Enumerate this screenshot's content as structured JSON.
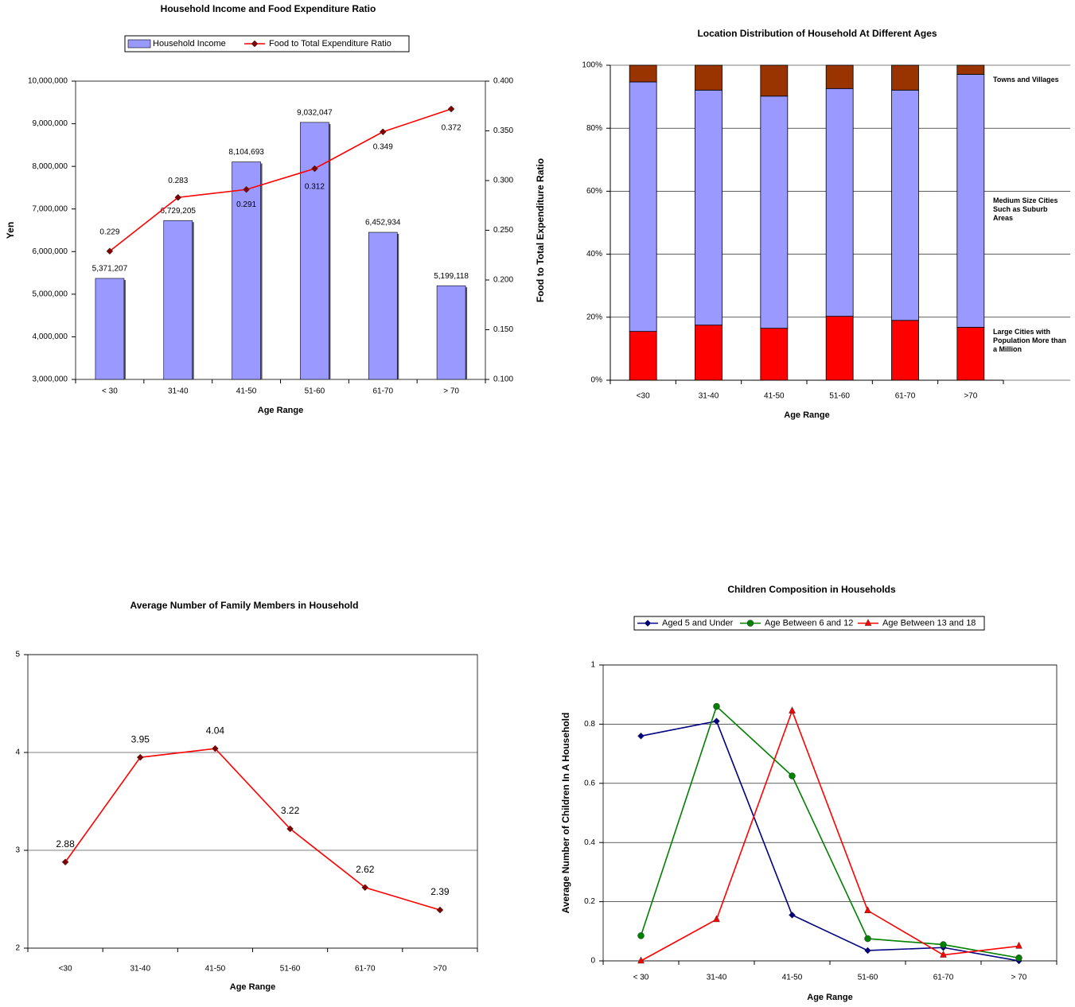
{
  "chart_data": [
    {
      "type": "bar",
      "title": "Household Income and Food Expenditure Ratio",
      "categories": [
        "< 30",
        "31-40",
        "41-50",
        "51-60",
        "61-70",
        "> 70"
      ],
      "series": [
        {
          "name": "Household Income",
          "type": "bar",
          "color": "#9999ff",
          "values": [
            5371207,
            6729205,
            8104693,
            9032047,
            6452934,
            5199118
          ],
          "value_labels": [
            "5,371,207",
            "6,729,205",
            "8,104,693",
            "9,032,047",
            "6,452,934",
            "5,199,118"
          ]
        },
        {
          "name": "Food to Total Expenditure Ratio",
          "type": "line",
          "axis": "y2",
          "color": "#ff0000",
          "marker": "diamond",
          "values": [
            0.229,
            0.283,
            0.291,
            0.312,
            0.349,
            0.372
          ]
        }
      ],
      "xlabel": "Age Range",
      "ylabel": "Yen",
      "y2label": "Food to Total Expenditure Ratio",
      "ylim": [
        3000000,
        10000000
      ],
      "yticks": [
        {
          "value": 3000000,
          "label": "3,000,000"
        },
        {
          "value": 4000000,
          "label": "4,000,000"
        },
        {
          "value": 5000000,
          "label": "5,000,000"
        },
        {
          "value": 6000000,
          "label": "6,000,000"
        },
        {
          "value": 7000000,
          "label": "7,000,000"
        },
        {
          "value": 8000000,
          "label": "8,000,000"
        },
        {
          "value": 9000000,
          "label": "9,000,000"
        },
        {
          "value": 10000000,
          "label": "10,000,000"
        }
      ],
      "y2lim": [
        0.1,
        0.4
      ],
      "y2ticks": [
        {
          "value": 0.1,
          "label": "0.100"
        },
        {
          "value": 0.15,
          "label": "0.150"
        },
        {
          "value": 0.2,
          "label": "0.200"
        },
        {
          "value": 0.25,
          "label": "0.250"
        },
        {
          "value": 0.3,
          "label": "0.300"
        },
        {
          "value": 0.35,
          "label": "0.350"
        },
        {
          "value": 0.4,
          "label": "0.400"
        }
      ],
      "grid": false,
      "legend": "top"
    },
    {
      "type": "stacked_bar",
      "title": "Location Distribution of Household At Different Ages",
      "categories": [
        "<30",
        "31-40",
        "41-50",
        "51-60",
        "61-70",
        ">70"
      ],
      "series": [
        {
          "name": "Large Cities with Population More than a Million",
          "color": "#ff0000",
          "values": [
            15.5,
            17.5,
            16.5,
            20.3,
            19,
            16.8
          ]
        },
        {
          "name": "Medium Size Cities Such as Suburb Areas",
          "color": "#9999ff",
          "values": [
            79.2,
            74.6,
            73.7,
            72.3,
            73.1,
            80.3
          ]
        },
        {
          "name": "Towns and Villages",
          "color": "#993300",
          "values": [
            5.3,
            7.9,
            9.8,
            7.4,
            7.9,
            2.9
          ]
        }
      ],
      "xlabel": "Age Range",
      "ylim": [
        0,
        100
      ],
      "yticks": [
        {
          "value": 0,
          "label": "0%"
        },
        {
          "value": 20,
          "label": "20%"
        },
        {
          "value": 40,
          "label": "40%"
        },
        {
          "value": 60,
          "label": "60%"
        },
        {
          "value": 80,
          "label": "80%"
        },
        {
          "value": 100,
          "label": "100%"
        }
      ],
      "grid": true,
      "legend": "right"
    },
    {
      "type": "line",
      "title": "Average Number of Family Members in Household",
      "categories": [
        "<30",
        "31-40",
        "41-50",
        "51-60",
        "61-70",
        ">70"
      ],
      "series": [
        {
          "color": "#ff0000",
          "marker": "diamond",
          "values": [
            2.88,
            3.95,
            4.04,
            3.22,
            2.62,
            2.39
          ]
        }
      ],
      "xlabel": "Age Range",
      "ylim": [
        2,
        5
      ],
      "yticks": [
        2,
        3,
        4,
        5
      ],
      "grid": true
    },
    {
      "type": "line",
      "title": "Children Composition in Households",
      "categories": [
        "< 30",
        "31-40",
        "41-50",
        "51-60",
        "61-70",
        "> 70"
      ],
      "series": [
        {
          "name": "Aged 5 and Under",
          "color": "#000080",
          "marker": "diamond",
          "values": [
            0.76,
            0.81,
            0.155,
            0.035,
            0.045,
            0.0
          ]
        },
        {
          "name": "Age Between 6 and 12",
          "color": "#008000",
          "marker": "circle",
          "values": [
            0.085,
            0.86,
            0.625,
            0.075,
            0.055,
            0.01
          ]
        },
        {
          "name": "Age Between 13 and 18",
          "color": "#ff0000",
          "marker": "triangle",
          "values": [
            0.0,
            0.14,
            0.845,
            0.17,
            0.02,
            0.05
          ]
        }
      ],
      "xlabel": "Age Range",
      "ylabel": "Average Number of Children In A Household",
      "ylim": [
        0,
        1
      ],
      "yticks": [
        0,
        0.2,
        0.4,
        0.6,
        0.8,
        1
      ],
      "grid": true,
      "legend": "top"
    }
  ]
}
